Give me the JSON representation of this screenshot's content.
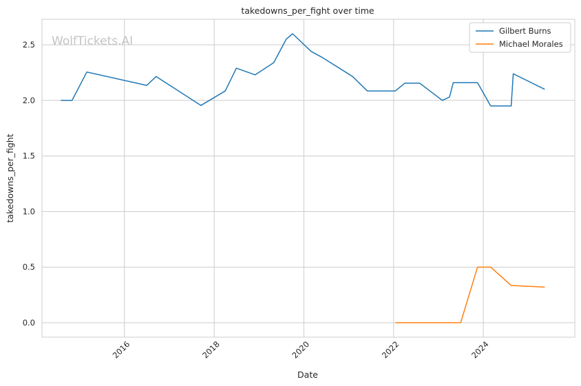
{
  "watermark": "WolfTickets.AI",
  "colors": {
    "burns": "#1f77b4",
    "morales": "#ff7f0e",
    "grid": "#cccccc",
    "frame": "#cccccc"
  },
  "chart_data": {
    "type": "line",
    "title": "takedowns_per_fight over time",
    "xlabel": "Date",
    "ylabel": "takedowns_per_fight",
    "xlim": [
      "2014-03-01",
      "2026-01-15"
    ],
    "ylim": [
      -0.13,
      2.73
    ],
    "x_ticks": [
      "2016",
      "2018",
      "2020",
      "2022",
      "2024"
    ],
    "y_ticks": [
      0.0,
      0.5,
      1.0,
      1.5,
      2.0,
      2.5
    ],
    "y_tick_labels": [
      "0.0",
      "0.5",
      "1.0",
      "1.5",
      "2.0",
      "2.5"
    ],
    "grid": true,
    "legend_position": "top-right",
    "series": [
      {
        "name": "Gilbert Burns",
        "color": "#1f77b4",
        "points": [
          [
            "2014-08-01",
            2.0
          ],
          [
            "2014-11-01",
            2.0
          ],
          [
            "2015-03-01",
            2.255
          ],
          [
            "2016-07-01",
            2.135
          ],
          [
            "2016-09-15",
            2.215
          ],
          [
            "2017-09-15",
            1.955
          ],
          [
            "2018-04-01",
            2.085
          ],
          [
            "2018-07-01",
            2.29
          ],
          [
            "2018-12-01",
            2.23
          ],
          [
            "2019-05-01",
            2.34
          ],
          [
            "2019-08-10",
            2.55
          ],
          [
            "2019-10-01",
            2.6
          ],
          [
            "2020-03-01",
            2.44
          ],
          [
            "2020-06-01",
            2.385
          ],
          [
            "2021-02-01",
            2.215
          ],
          [
            "2021-06-01",
            2.085
          ],
          [
            "2022-01-15",
            2.085
          ],
          [
            "2022-04-01",
            2.155
          ],
          [
            "2022-08-01",
            2.155
          ],
          [
            "2023-02-01",
            2.0
          ],
          [
            "2023-04-01",
            2.03
          ],
          [
            "2023-05-01",
            2.16
          ],
          [
            "2023-11-15",
            2.16
          ],
          [
            "2024-03-01",
            1.95
          ],
          [
            "2024-08-15",
            1.95
          ],
          [
            "2024-09-01",
            2.24
          ],
          [
            "2025-05-15",
            2.1
          ]
        ]
      },
      {
        "name": "Michael Morales",
        "color": "#ff7f0e",
        "points": [
          [
            "2022-01-15",
            0.0
          ],
          [
            "2022-04-01",
            0.0
          ],
          [
            "2023-07-01",
            0.0
          ],
          [
            "2023-11-15",
            0.5
          ],
          [
            "2024-03-01",
            0.5
          ],
          [
            "2024-08-15",
            0.335
          ],
          [
            "2025-05-15",
            0.32
          ]
        ]
      }
    ]
  }
}
